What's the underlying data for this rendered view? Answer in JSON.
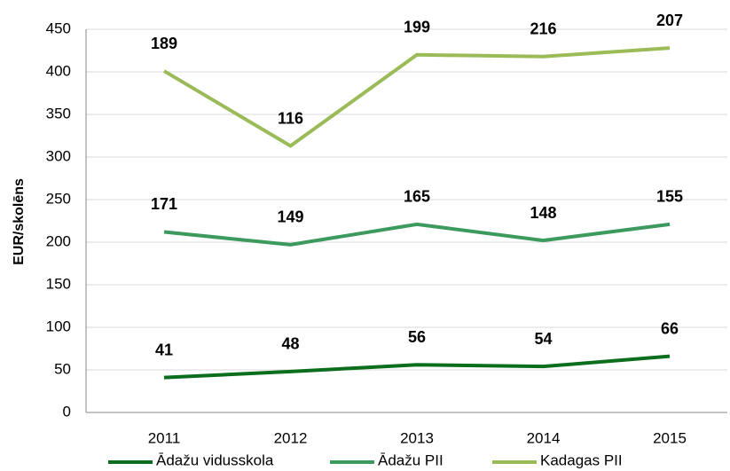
{
  "chart_data": {
    "type": "line",
    "stacked": true,
    "y_label": "EUR/skolēns",
    "categories": [
      "2011",
      "2012",
      "2013",
      "2014",
      "2015"
    ],
    "series": [
      {
        "name": "Ādažu vidusskola",
        "color": "#0b6e1c",
        "values": [
          41,
          48,
          56,
          54,
          66
        ]
      },
      {
        "name": "Ādažu PII",
        "color": "#3d9a5e",
        "values": [
          171,
          149,
          165,
          148,
          155
        ]
      },
      {
        "name": "Kadagas PII",
        "color": "#9bbb59",
        "values": [
          189,
          116,
          199,
          216,
          207
        ]
      }
    ],
    "ylim": [
      0,
      450
    ],
    "yticks": [
      0,
      50,
      100,
      150,
      200,
      250,
      300,
      350,
      400,
      450
    ],
    "grid": true,
    "legend": "bottom"
  }
}
